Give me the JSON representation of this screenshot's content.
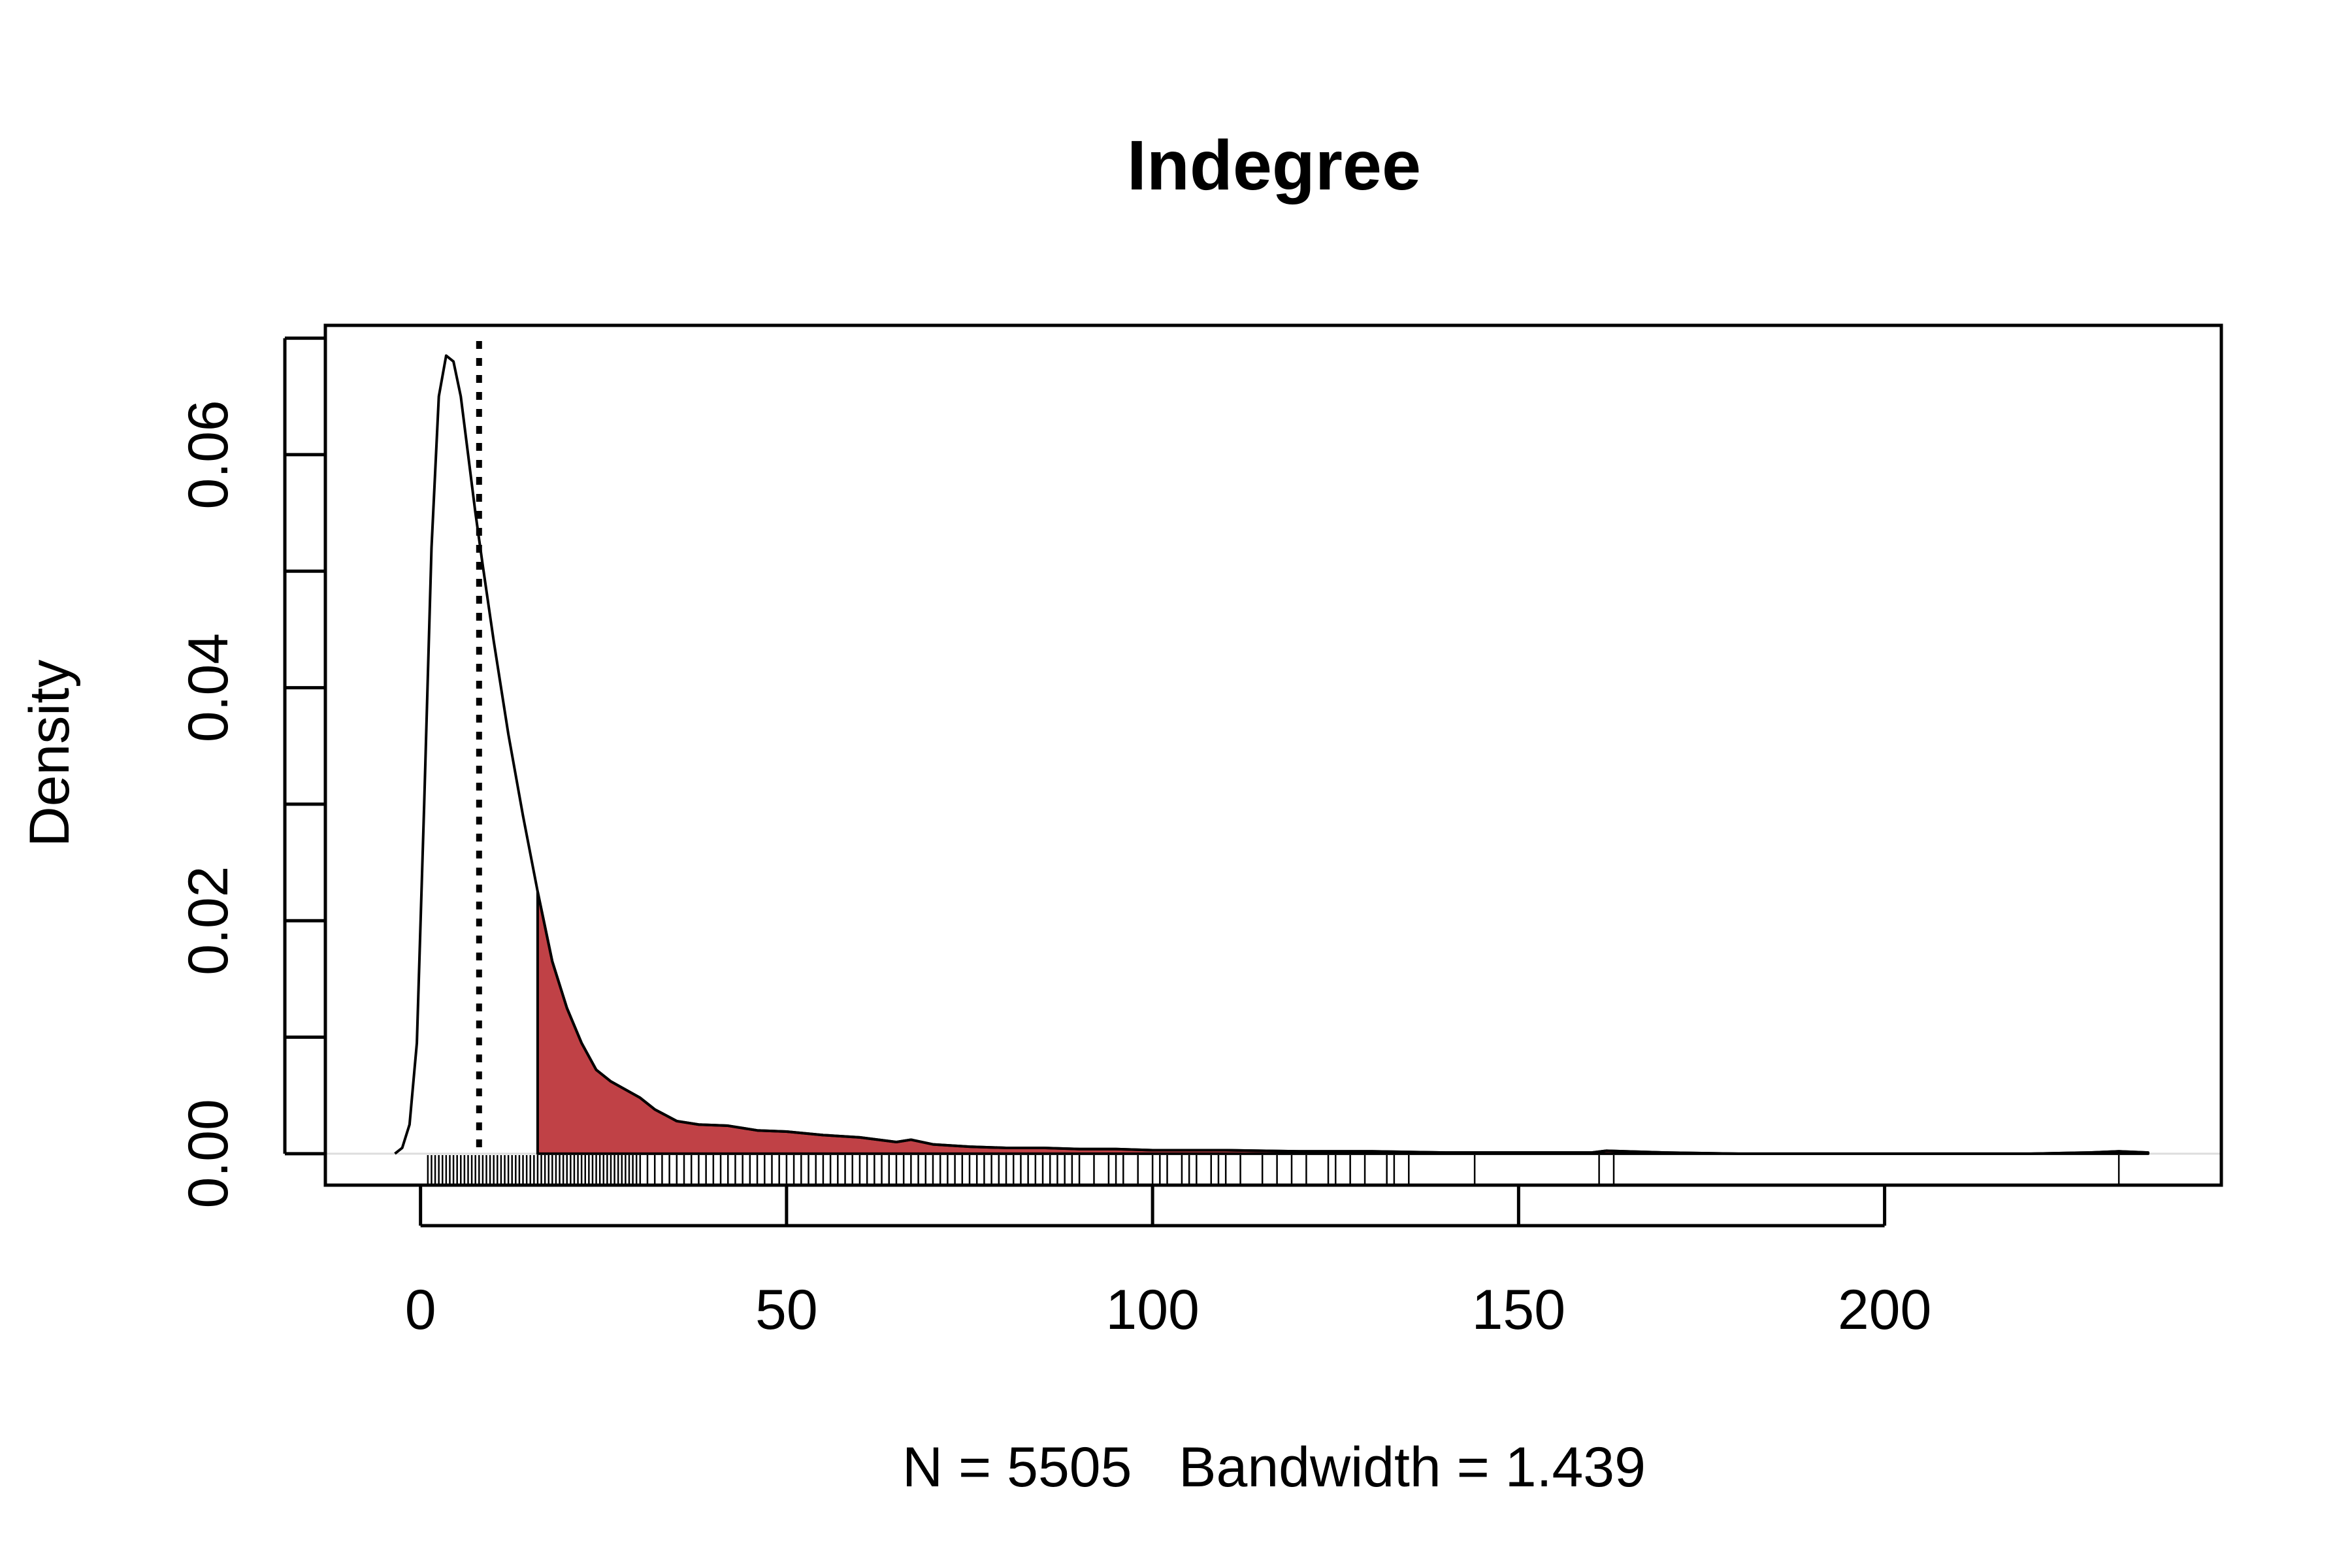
{
  "chart_data": {
    "type": "area",
    "title": "Indegree",
    "xlabel": "N = 5505   Bandwidth = 1.439",
    "ylabel": "Density",
    "xlim": [
      -13,
      246
    ],
    "ylim": [
      -0.0027,
      0.0711
    ],
    "grid": false,
    "x_ticks": [
      0,
      50,
      100,
      150,
      200
    ],
    "x_tick_labels": [
      "0",
      "50",
      "100",
      "150",
      "200"
    ],
    "y_ticks": [
      0,
      0.01,
      0.02,
      0.03,
      0.04,
      0.05,
      0.06,
      0.07
    ],
    "y_tick_labels": [
      "0.00",
      "",
      "0.02",
      "",
      "0.04",
      "",
      "0.06",
      ""
    ],
    "series": [
      {
        "x": [
          -3.5,
          -2.5,
          -1.5,
          -0.5,
          0.5,
          1.5,
          2.5,
          3.5,
          4.5,
          5.5,
          6.5,
          7.5,
          8.5,
          10,
          12,
          14,
          16,
          18,
          20,
          22,
          24,
          26,
          28,
          30,
          32,
          35,
          38,
          42,
          46,
          50,
          55,
          60,
          65,
          67,
          70,
          75,
          80,
          85,
          90,
          95,
          100,
          110,
          120,
          130,
          140,
          150,
          160,
          162,
          170,
          180,
          190,
          200,
          210,
          220,
          228,
          232,
          236
        ],
        "y": [
          0.0,
          0.0005,
          0.0025,
          0.0095,
          0.03,
          0.052,
          0.065,
          0.0685,
          0.068,
          0.065,
          0.06,
          0.055,
          0.0505,
          0.044,
          0.036,
          0.029,
          0.0225,
          0.0165,
          0.0125,
          0.0095,
          0.0072,
          0.0062,
          0.0055,
          0.0048,
          0.0038,
          0.0028,
          0.0025,
          0.0024,
          0.002,
          0.0019,
          0.0016,
          0.0014,
          0.001,
          0.0012,
          0.0008,
          0.0006,
          0.0005,
          0.0005,
          0.0004,
          0.0004,
          0.0003,
          0.0003,
          0.0002,
          0.0002,
          0.0001,
          0.0001,
          0.0001,
          0.00025,
          0.0001,
          0.0,
          0.0,
          0.0,
          0.0,
          0.0,
          0.0001,
          0.0002,
          0.0001
        ]
      }
    ],
    "shaded_from_x": 16,
    "reference_line_x": 8,
    "rug_x": [
      1,
      1.5,
      2,
      2.5,
      3,
      3.5,
      4,
      4.5,
      5,
      5.5,
      6,
      6.5,
      7,
      7.5,
      8,
      8.5,
      9,
      9.5,
      10,
      10.5,
      11,
      11.5,
      12,
      12.5,
      13,
      13.5,
      14,
      14.5,
      15,
      15.5,
      16,
      16.5,
      17,
      17.5,
      18,
      18.5,
      19,
      19.5,
      20,
      20.5,
      21,
      21.5,
      22,
      22.5,
      23,
      23.5,
      24,
      24.5,
      25,
      25.5,
      26,
      26.5,
      27,
      27.5,
      28,
      28.5,
      29,
      29.5,
      30,
      31,
      32,
      33,
      34,
      35,
      36,
      37,
      38,
      39,
      40,
      41,
      42,
      43,
      44,
      45,
      46,
      47,
      48,
      49,
      50,
      51,
      52,
      53,
      54,
      55,
      56,
      57,
      58,
      59,
      60,
      61,
      62,
      63,
      64,
      65,
      66,
      67,
      68,
      69,
      70,
      71,
      72,
      73,
      74,
      75,
      76,
      77,
      78,
      79,
      80,
      81,
      82,
      83,
      84,
      85,
      86,
      87,
      88,
      89,
      90,
      92,
      94,
      95,
      96,
      98,
      100,
      101,
      102,
      104,
      105,
      106,
      108,
      109,
      110,
      112,
      115,
      117,
      119,
      121,
      124,
      125,
      127,
      129,
      132,
      133,
      135,
      144,
      161,
      163,
      232
    ],
    "colors": {
      "fill": "#C04146",
      "line": "#000000"
    }
  }
}
